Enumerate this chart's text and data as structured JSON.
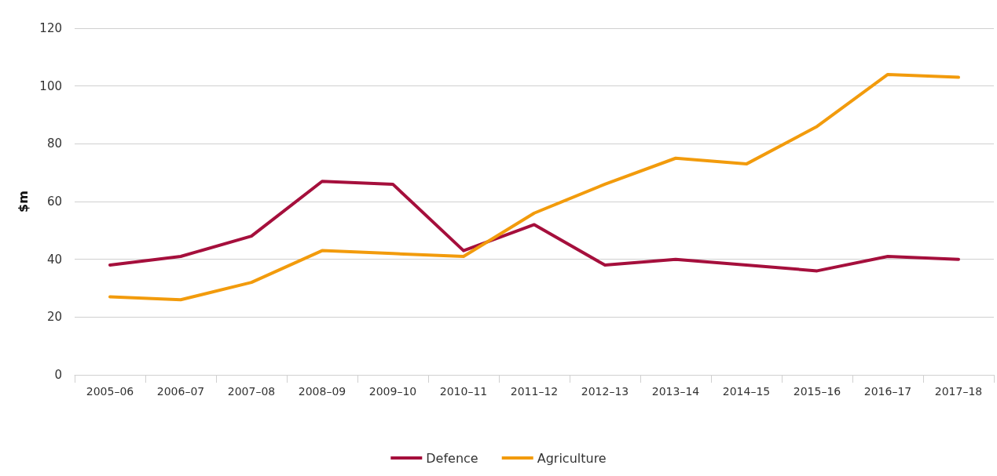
{
  "chart_data": {
    "type": "line",
    "ylabel": "$m",
    "categories": [
      "2005–06",
      "2006–07",
      "2007–08",
      "2008–09",
      "2009–10",
      "2010–11",
      "2011–12",
      "2012–13",
      "2013–14",
      "2014–15",
      "2015–16",
      "2016–17",
      "2017–18"
    ],
    "series": [
      {
        "name": "Defence",
        "color": "#a50f3c",
        "values": [
          38,
          41,
          48,
          67,
          66,
          43,
          52,
          38,
          40,
          38,
          36,
          41,
          40
        ]
      },
      {
        "name": "Agriculture",
        "color": "#f29b0c",
        "values": [
          27,
          26,
          32,
          43,
          42,
          41,
          56,
          66,
          75,
          73,
          86,
          104,
          103
        ]
      }
    ],
    "ylim": [
      0,
      120
    ],
    "yticks": [
      0,
      20,
      40,
      60,
      80,
      100,
      120
    ],
    "grid": "y",
    "legend": "bottom",
    "marker": "none",
    "line_style": "solid"
  }
}
